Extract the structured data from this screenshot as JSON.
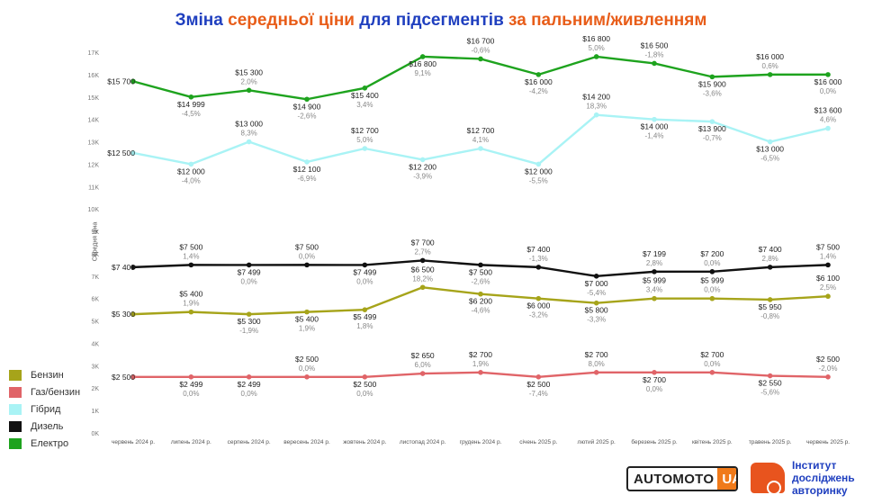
{
  "title_part1": "Зміна ",
  "title_part2": "середньої ціни",
  "title_part3": " для підсегментів ",
  "title_part4": "за пальним/живленням",
  "y_axis_title": "Середня ціна",
  "logos": {
    "automoto_left": "AUTOMOTO",
    "automoto_right": "UA",
    "institute_line1": "Інститут",
    "institute_line2": "досліджень",
    "institute_line3": "авторинку"
  },
  "colors": {
    "title_blue": "#1f3fbf",
    "title_orange": "#e85d19"
  },
  "chart_data": {
    "type": "line",
    "x": [
      "червень 2024 р.",
      "липень 2024 р.",
      "серпень 2024 р.",
      "вересень 2024 р.",
      "жовтень 2024 р.",
      "листопад 2024 р.",
      "грудень 2024 р.",
      "січень 2025 р.",
      "лютий 2025 р.",
      "березень 2025 р.",
      "квітень 2025 р.",
      "травень 2025 р.",
      "червень 2025 р."
    ],
    "ylim": [
      0,
      17000
    ],
    "y_ticks": [
      "0K",
      "1K",
      "2K",
      "3K",
      "4K",
      "5K",
      "6K",
      "7K",
      "8K",
      "9K",
      "10K",
      "11K",
      "12K",
      "13K",
      "14K",
      "15K",
      "16K",
      "17K"
    ],
    "ylabel": "Середня ціна",
    "legend_position": "bottom-left",
    "series": [
      {
        "name": "Бензин",
        "color": "#a6a41a",
        "values": [
          5300,
          5400,
          5300,
          5400,
          5499,
          6500,
          6200,
          6000,
          5800,
          5999,
          5999,
          5950,
          6100
        ],
        "value_labels": [
          "$5 300",
          "$5 400",
          "$5 300",
          "$5 400",
          "$5 499",
          "$6 500",
          "$6 200",
          "$6 000",
          "$5 800",
          "$5 999",
          "$5 999",
          "$5 950",
          "$6 100"
        ],
        "change_labels": [
          "",
          "1,9%",
          "-1,9%",
          "1,9%",
          "1,8%",
          "18,2%",
          "-4,6%",
          "-3,2%",
          "-3,3%",
          "3,4%",
          "0,0%",
          "-0,8%",
          "2,5%"
        ],
        "label_pos": [
          "left",
          "above",
          "below",
          "below",
          "below",
          "above",
          "below",
          "below",
          "below",
          "above",
          "above",
          "below",
          "above"
        ]
      },
      {
        "name": "Газ/бензин",
        "color": "#e06468",
        "values": [
          2500,
          2499,
          2499,
          2500,
          2500,
          2650,
          2700,
          2500,
          2700,
          2700,
          2700,
          2550,
          2500
        ],
        "value_labels": [
          "$2 500",
          "$2 499",
          "$2 499",
          "$2 500",
          "$2 500",
          "$2 650",
          "$2 700",
          "$2 500",
          "$2 700",
          "$2 700",
          "$2 700",
          "$2 550",
          "$2 500"
        ],
        "change_labels": [
          "",
          "0,0%",
          "0,0%",
          "0,0%",
          "0,0%",
          "6,0%",
          "1,9%",
          "-7,4%",
          "8,0%",
          "0,0%",
          "0,0%",
          "-5,6%",
          "-2,0%"
        ],
        "label_pos": [
          "left",
          "below",
          "below",
          "above",
          "below",
          "above",
          "above",
          "below",
          "above",
          "below",
          "above",
          "below",
          "above"
        ]
      },
      {
        "name": "Гібрид",
        "color": "#a9f3f5",
        "values": [
          12500,
          12000,
          13000,
          12100,
          12700,
          12200,
          12700,
          12000,
          14200,
          14000,
          13900,
          13000,
          13600
        ],
        "value_labels": [
          "$12 500",
          "$12 000",
          "$13 000",
          "$12 100",
          "$12 700",
          "$12 200",
          "$12 700",
          "$12 000",
          "$14 200",
          "$14 000",
          "$13 900",
          "$13 000",
          "$13 600"
        ],
        "change_labels": [
          "",
          "-4,0%",
          "8,3%",
          "-6,9%",
          "5,0%",
          "-3,9%",
          "4,1%",
          "-5,5%",
          "18,3%",
          "-1,4%",
          "-0,7%",
          "-6,5%",
          "4,6%"
        ],
        "label_pos": [
          "left",
          "below",
          "above",
          "below",
          "above",
          "below",
          "above",
          "below",
          "above",
          "below",
          "below",
          "below",
          "above"
        ]
      },
      {
        "name": "Дизель",
        "color": "#111111",
        "values": [
          7400,
          7500,
          7499,
          7500,
          7499,
          7700,
          7500,
          7400,
          7000,
          7199,
          7200,
          7400,
          7500
        ],
        "value_labels": [
          "$7 400",
          "$7 500",
          "$7 499",
          "$7 500",
          "$7 499",
          "$7 700",
          "$7 500",
          "$7 400",
          "$7 000",
          "$7 199",
          "$7 200",
          "$7 400",
          "$7 500"
        ],
        "change_labels": [
          "",
          "1,4%",
          "0,0%",
          "0,0%",
          "0,0%",
          "2,7%",
          "-2,6%",
          "-1,3%",
          "-5,4%",
          "2,8%",
          "0,0%",
          "2,8%",
          "1,4%"
        ],
        "label_pos": [
          "left",
          "above",
          "below",
          "above",
          "below",
          "above",
          "below",
          "above",
          "below",
          "above",
          "above",
          "above",
          "above"
        ]
      },
      {
        "name": "Електро",
        "color": "#1ea31e",
        "values": [
          15700,
          14999,
          15300,
          14900,
          15400,
          16800,
          16700,
          16000,
          16800,
          16500,
          15900,
          16000,
          16000
        ],
        "value_labels": [
          "$15 700",
          "$14 999",
          "$15 300",
          "$14 900",
          "$15 400",
          "$16 800",
          "$16 700",
          "$16 000",
          "$16 800",
          "$16 500",
          "$15 900",
          "$16 000",
          "$16 000"
        ],
        "change_labels": [
          "",
          "-4,5%",
          "2,0%",
          "-2,6%",
          "3,4%",
          "9,1%",
          "-0,6%",
          "-4,2%",
          "5,0%",
          "-1,8%",
          "-3,6%",
          "0,6%",
          "0,0%"
        ],
        "label_pos": [
          "left",
          "below",
          "above",
          "below",
          "below",
          "below",
          "above",
          "below",
          "above",
          "above",
          "below",
          "above",
          "below"
        ]
      }
    ]
  }
}
